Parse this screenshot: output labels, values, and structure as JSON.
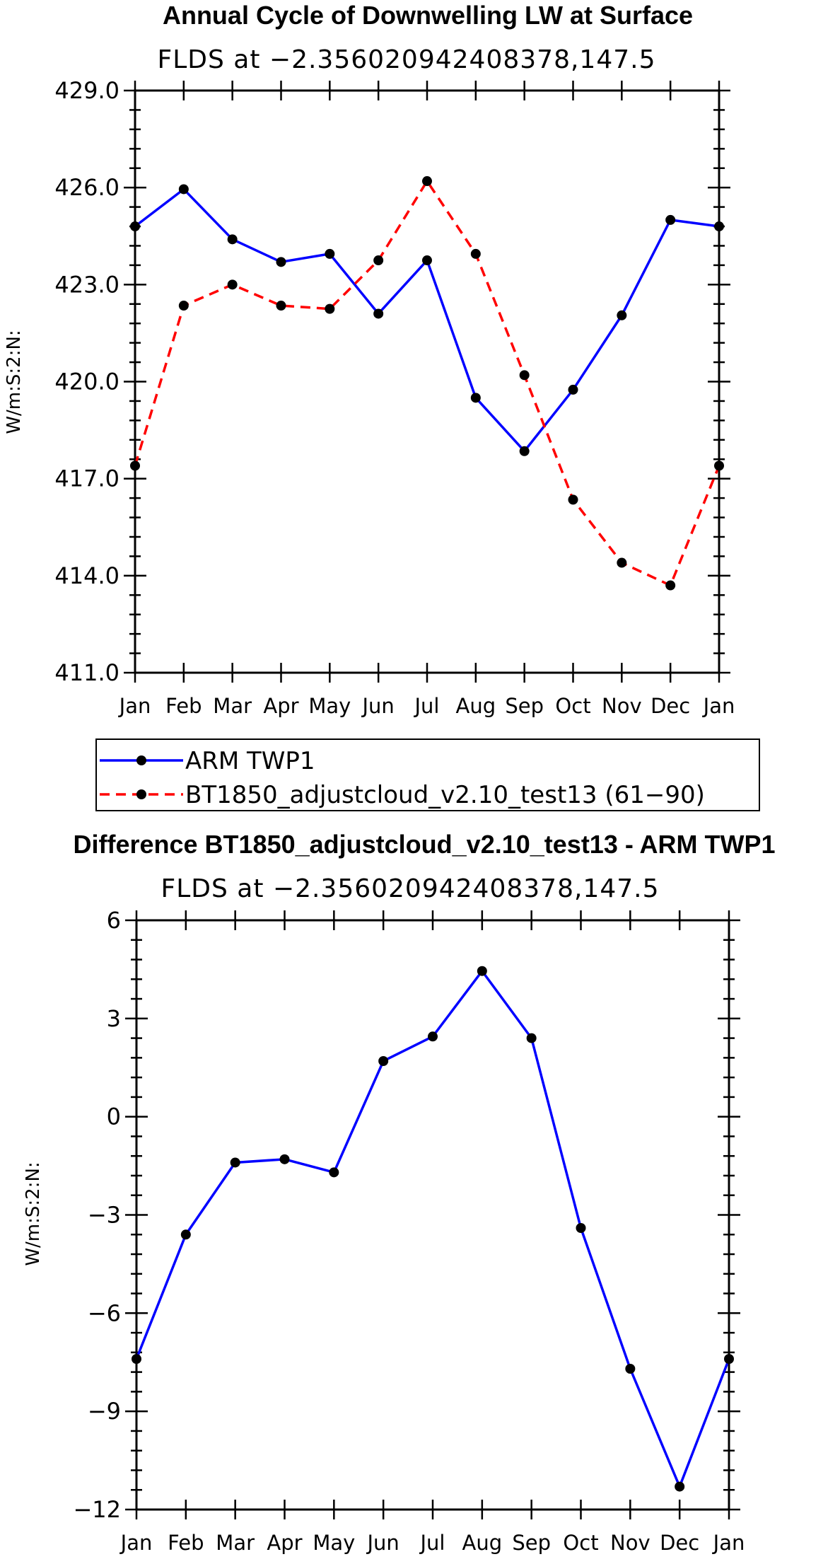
{
  "chart_data": [
    {
      "type": "line",
      "title": "Annual Cycle of Downwelling LW at Surface",
      "subtitle": "FLDS at −2.356020942408378,147.5",
      "ylabel": "W/m:S:2:N:",
      "xlabel": "",
      "ylim": [
        411.0,
        429.0
      ],
      "yticks": [
        411.0,
        414.0,
        417.0,
        420.0,
        423.0,
        426.0,
        429.0
      ],
      "ytick_labels": [
        "411.0",
        "414.0",
        "417.0",
        "420.0",
        "423.0",
        "426.0",
        "429.0"
      ],
      "categories": [
        "Jan",
        "Feb",
        "Mar",
        "Apr",
        "May",
        "Jun",
        "Jul",
        "Aug",
        "Sep",
        "Oct",
        "Nov",
        "Dec",
        "Jan"
      ],
      "series": [
        {
          "name": "ARM TWP1",
          "color": "#0000ff",
          "dash": "solid",
          "values": [
            424.8,
            425.95,
            424.4,
            423.7,
            423.95,
            422.1,
            423.75,
            419.5,
            417.85,
            419.75,
            422.05,
            425.0,
            424.8
          ]
        },
        {
          "name": "BT1850_adjustcloud_v2.10_test13 (61−90)",
          "color": "#ff0000",
          "dash": "dashed",
          "values": [
            417.4,
            422.35,
            423.0,
            422.35,
            422.25,
            423.75,
            426.2,
            423.95,
            420.2,
            416.35,
            414.4,
            413.7,
            417.4
          ]
        }
      ],
      "legend_position": "below"
    },
    {
      "type": "line",
      "title": "Difference BT1850_adjustcloud_v2.10_test13 - ARM TWP1",
      "subtitle": "FLDS at −2.356020942408378,147.5",
      "ylabel": "W/m:S:2:N:",
      "xlabel": "",
      "ylim": [
        -12,
        6
      ],
      "yticks": [
        -12,
        -9,
        -6,
        -3,
        0,
        3,
        6
      ],
      "ytick_labels": [
        "−12",
        "−9",
        "−6",
        "−3",
        "0",
        "3",
        "6"
      ],
      "categories": [
        "Jan",
        "Feb",
        "Mar",
        "Apr",
        "May",
        "Jun",
        "Jul",
        "Aug",
        "Sep",
        "Oct",
        "Nov",
        "Dec",
        "Jan"
      ],
      "series": [
        {
          "name": "Difference",
          "color": "#0000ff",
          "dash": "solid",
          "values": [
            -7.4,
            -3.6,
            -1.4,
            -1.3,
            -1.7,
            1.7,
            2.45,
            4.45,
            2.4,
            -3.4,
            -7.7,
            -11.3,
            -7.4
          ]
        }
      ]
    }
  ]
}
